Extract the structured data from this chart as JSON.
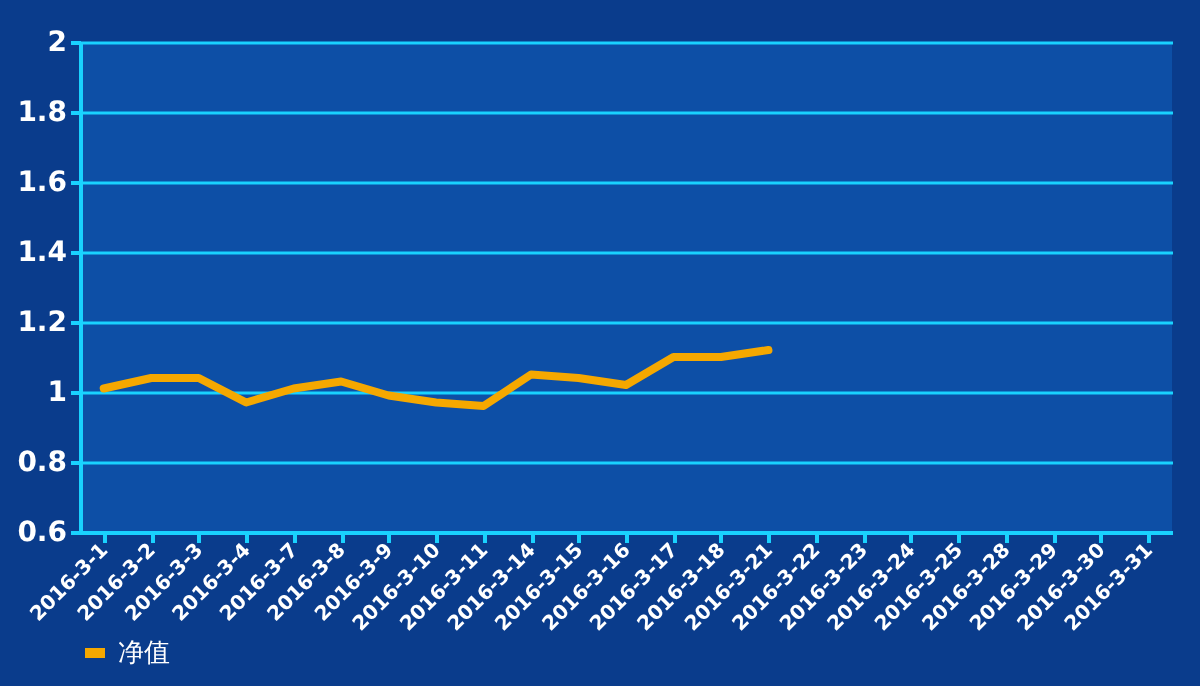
{
  "chart_data": {
    "type": "line",
    "categories": [
      "2016-3-1",
      "2016-3-2",
      "2016-3-3",
      "2016-3-4",
      "2016-3-7",
      "2016-3-8",
      "2016-3-9",
      "2016-3-10",
      "2016-3-11",
      "2016-3-14",
      "2016-3-15",
      "2016-3-16",
      "2016-3-17",
      "2016-3-18",
      "2016-3-21",
      "2016-3-22",
      "2016-3-23",
      "2016-3-24",
      "2016-3-25",
      "2016-3-28",
      "2016-3-29",
      "2016-3-30",
      "2016-3-31"
    ],
    "series": [
      {
        "name": "净值",
        "color": "#f5a800",
        "values": [
          1.01,
          1.04,
          1.04,
          0.97,
          1.01,
          1.03,
          0.99,
          0.97,
          0.96,
          1.05,
          1.04,
          1.02,
          1.1,
          1.1,
          1.12,
          null,
          null,
          null,
          null,
          null,
          null,
          null,
          null
        ]
      }
    ],
    "ylim": [
      0.6,
      2
    ],
    "yticks": [
      0.6,
      0.8,
      1,
      1.2,
      1.4,
      1.6,
      1.8,
      2
    ],
    "grid": "y",
    "legend": "bottom left",
    "marker": "none",
    "line_style": "solid"
  }
}
